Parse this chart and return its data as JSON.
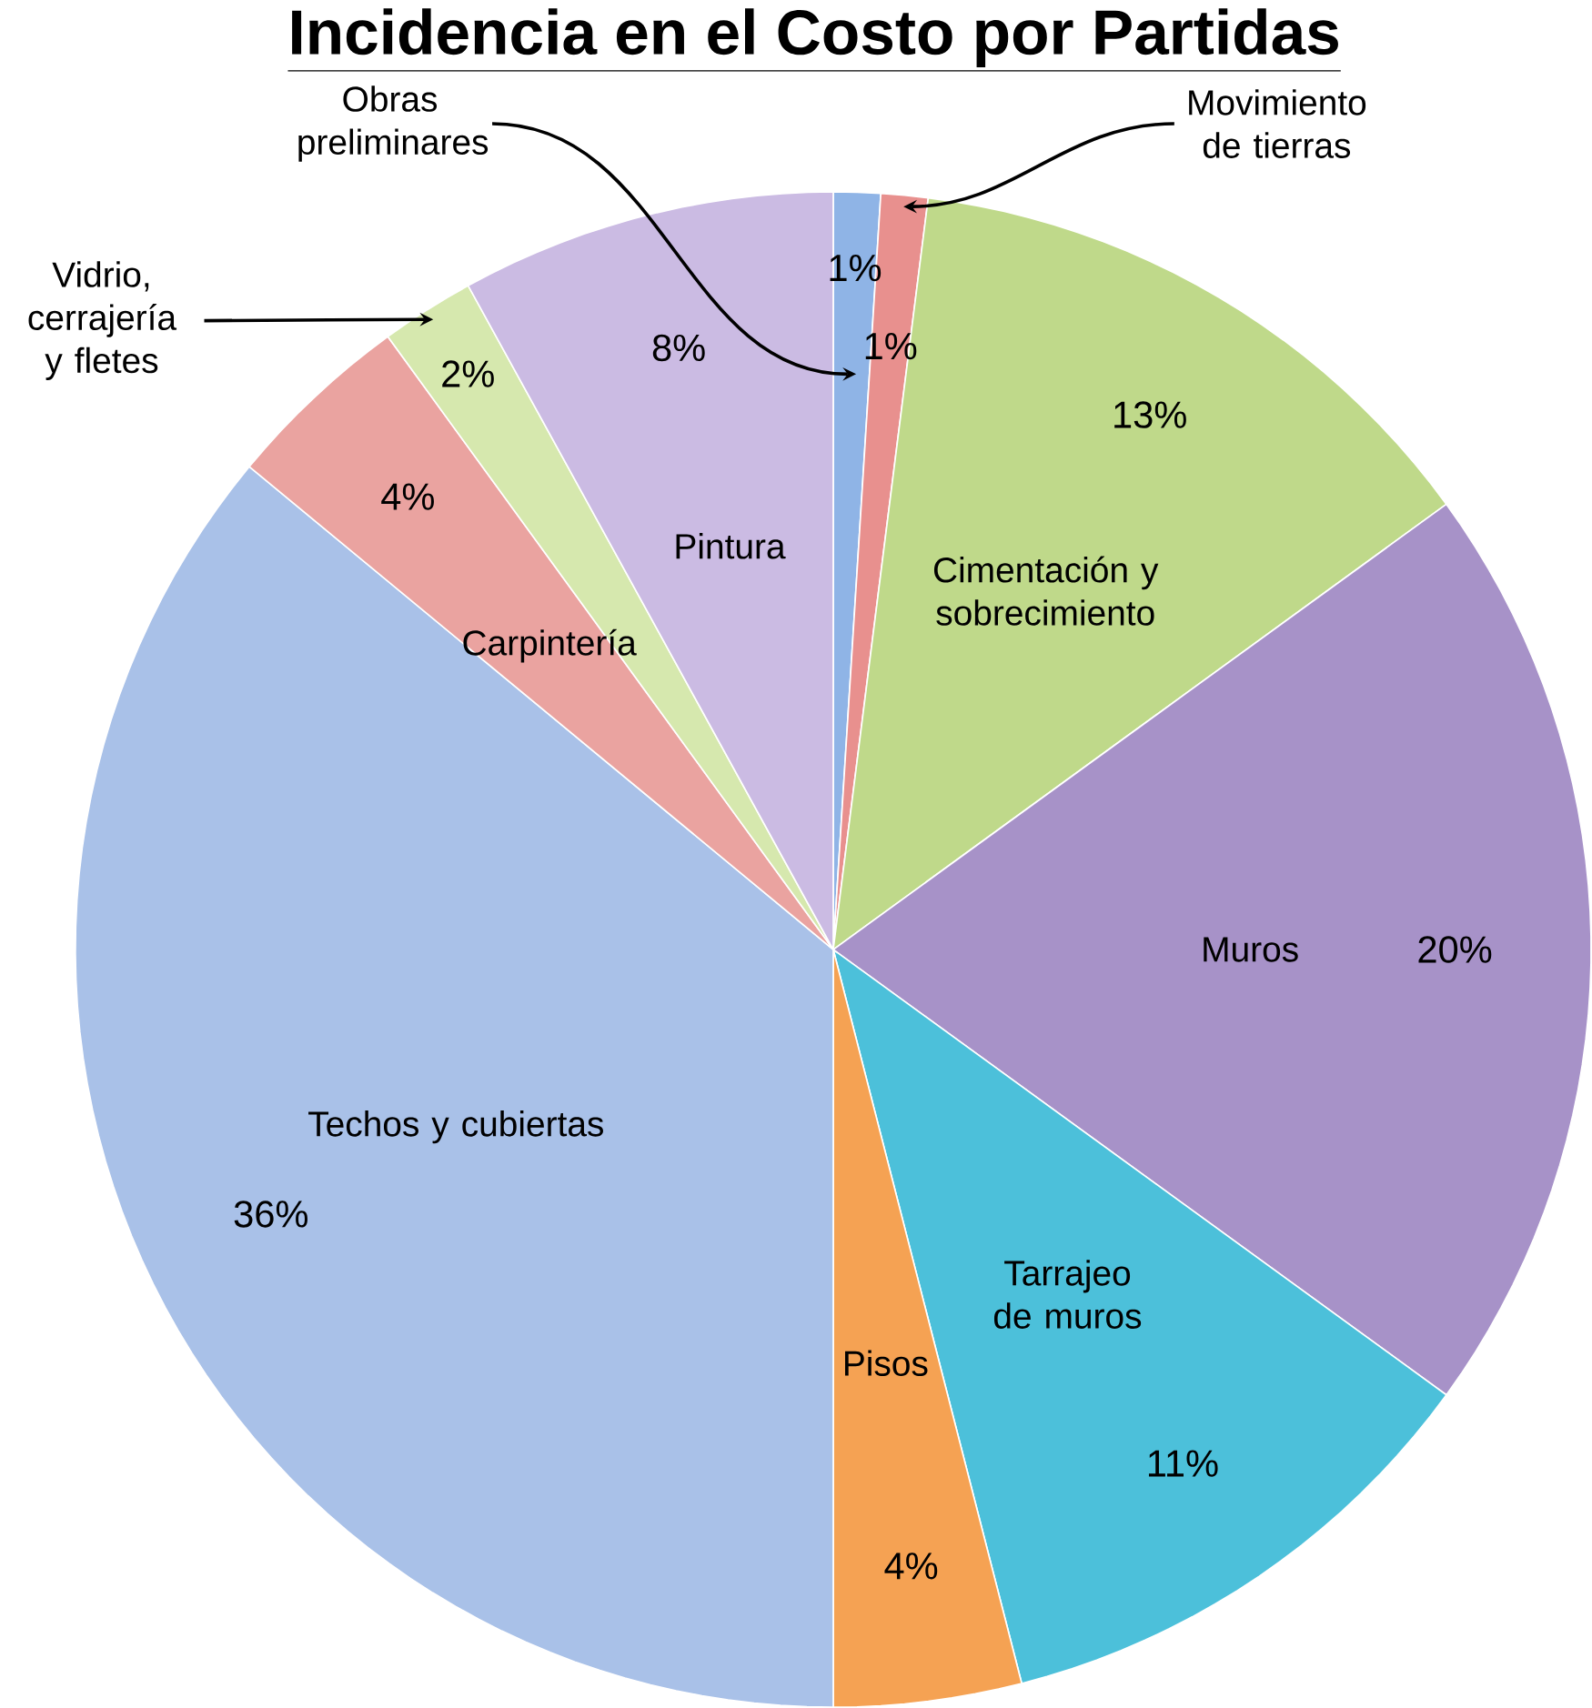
{
  "chart_data": {
    "type": "pie",
    "title": "Incidencia en el Costo por Partidas",
    "categories": [
      "Obras preliminares",
      "Movimiento de tierras",
      "Cimentación y sobrecimiento",
      "Muros",
      "Tarrajeo de muros",
      "Pisos",
      "Techos y cubiertas",
      "Carpintería",
      "Vidrio, cerrajería y fletes",
      "Pintura"
    ],
    "values": [
      1,
      1,
      13,
      20,
      11,
      4,
      36,
      4,
      2,
      8
    ],
    "colors": [
      "#8fb4e6",
      "#e8908e",
      "#bfd98a",
      "#a792c8",
      "#4cc0da",
      "#f5a253",
      "#a9c1e8",
      "#eaa3a0",
      "#d6e8ae",
      "#cbbbe3"
    ],
    "value_labels": [
      "1%",
      "1%",
      "13%",
      "20%",
      "11%",
      "4%",
      "36%",
      "4%",
      "2%",
      "8%"
    ]
  }
}
